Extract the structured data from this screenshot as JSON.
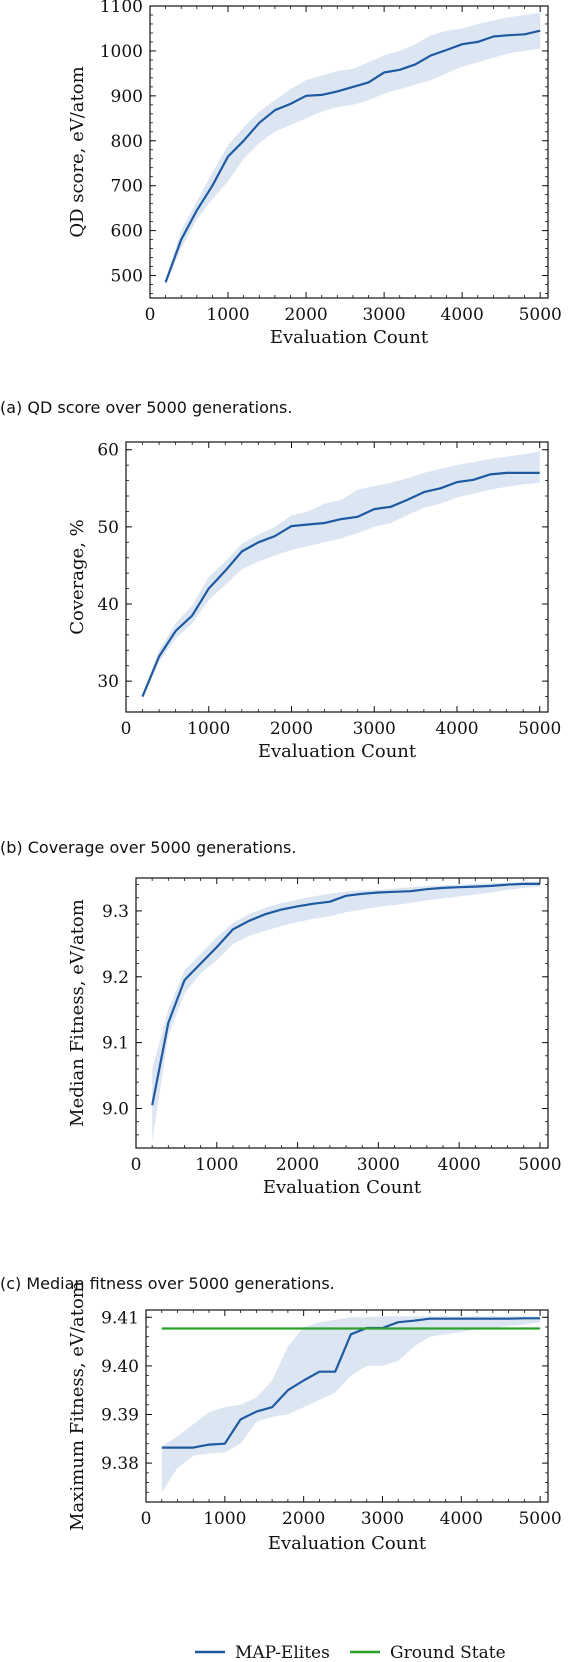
{
  "captions": {
    "a": "(a) QD score over 5000 generations.",
    "b": "(b) Coverage over 5000 generations.",
    "c": "(c) Median fitness over 5000 generations."
  },
  "colors": {
    "map_elites": "#1f5aa0",
    "band": "#dce6f3",
    "ground_state": "#2ca02c"
  },
  "chart_data": [
    {
      "type": "line",
      "xlabel": "Evaluation Count",
      "ylabel": "QD score, eV/atom",
      "xlim": [
        0,
        5100
      ],
      "ylim": [
        450,
        1100
      ],
      "xticks": [
        0,
        1000,
        2000,
        3000,
        4000,
        5000
      ],
      "yticks": [
        500,
        600,
        700,
        800,
        900,
        1000,
        1100
      ],
      "series": [
        {
          "x": [
            200,
            400,
            600,
            800,
            1000,
            1200,
            1400,
            1600,
            1800,
            2000,
            2200,
            2400,
            2600,
            2800,
            3000,
            3200,
            3400,
            3600,
            3800,
            4000,
            4200,
            4400,
            4600,
            4800,
            5000
          ],
          "y": [
            485,
            580,
            645,
            700,
            765,
            800,
            840,
            868,
            882,
            900,
            902,
            910,
            920,
            930,
            952,
            958,
            970,
            990,
            1002,
            1015,
            1020,
            1032,
            1035,
            1037,
            1045
          ],
          "lower": [
            480,
            560,
            625,
            670,
            710,
            760,
            795,
            820,
            835,
            850,
            865,
            875,
            880,
            890,
            905,
            915,
            925,
            935,
            950,
            965,
            975,
            985,
            995,
            1000,
            1005
          ],
          "upper": [
            490,
            600,
            665,
            730,
            790,
            830,
            865,
            890,
            915,
            935,
            945,
            955,
            960,
            975,
            990,
            1000,
            1015,
            1035,
            1045,
            1050,
            1060,
            1068,
            1075,
            1080,
            1085
          ]
        }
      ]
    },
    {
      "type": "line",
      "xlabel": "Evaluation Count",
      "ylabel": "Coverage, %",
      "xlim": [
        0,
        5100
      ],
      "ylim": [
        26,
        61
      ],
      "xticks": [
        0,
        1000,
        2000,
        3000,
        4000,
        5000
      ],
      "yticks": [
        30,
        40,
        50,
        60
      ],
      "series": [
        {
          "x": [
            200,
            400,
            600,
            800,
            1000,
            1200,
            1400,
            1600,
            1800,
            2000,
            2200,
            2400,
            2600,
            2800,
            3000,
            3200,
            3400,
            3600,
            3800,
            4000,
            4200,
            4400,
            4600,
            4800,
            5000
          ],
          "y": [
            28,
            33.2,
            36.5,
            38.5,
            42,
            44.3,
            46.8,
            48,
            48.8,
            50.1,
            50.3,
            50.5,
            51,
            51.3,
            52.3,
            52.6,
            53.5,
            54.5,
            55,
            55.8,
            56.1,
            56.8,
            57,
            57,
            57
          ],
          "lower": [
            27.8,
            32.5,
            35.5,
            37.5,
            40.5,
            42.5,
            44.5,
            45.5,
            46.3,
            47,
            47.5,
            48,
            48.5,
            49.2,
            50,
            50.5,
            51.5,
            52.5,
            53,
            53.8,
            54.3,
            54.8,
            55.2,
            55.5,
            55.7
          ],
          "upper": [
            28.3,
            34,
            37.5,
            39.8,
            43.5,
            45.5,
            47.8,
            49,
            50,
            51.5,
            52,
            53,
            53.5,
            54.8,
            55.3,
            55.7,
            56.3,
            57,
            57.5,
            58,
            58.4,
            58.8,
            59.1,
            59.4,
            59.8
          ]
        }
      ]
    },
    {
      "type": "line",
      "xlabel": "Evaluation Count",
      "ylabel": "Median Fitness, eV/atom",
      "xlim": [
        0,
        5100
      ],
      "ylim": [
        8.94,
        9.35
      ],
      "xticks": [
        0,
        1000,
        2000,
        3000,
        4000,
        5000
      ],
      "yticks": [
        9.0,
        9.1,
        9.2,
        9.3
      ],
      "ytick_labels": [
        "9.0",
        "9.1",
        "9.2",
        "9.3"
      ],
      "series": [
        {
          "x": [
            200,
            400,
            600,
            800,
            1000,
            1200,
            1400,
            1600,
            1800,
            2000,
            2200,
            2400,
            2600,
            2800,
            3000,
            3200,
            3400,
            3600,
            3800,
            4000,
            4200,
            4400,
            4600,
            4800,
            5000
          ],
          "y": [
            9.005,
            9.13,
            9.195,
            9.22,
            9.245,
            9.272,
            9.285,
            9.295,
            9.302,
            9.307,
            9.311,
            9.314,
            9.323,
            9.326,
            9.328,
            9.329,
            9.33,
            9.333,
            9.335,
            9.336,
            9.337,
            9.338,
            9.34,
            9.341,
            9.341
          ],
          "lower": [
            8.95,
            9.11,
            9.175,
            9.205,
            9.225,
            9.25,
            9.262,
            9.27,
            9.277,
            9.283,
            9.288,
            9.292,
            9.298,
            9.302,
            9.306,
            9.309,
            9.312,
            9.316,
            9.319,
            9.322,
            9.325,
            9.328,
            9.332,
            9.335,
            9.337
          ],
          "upper": [
            9.06,
            9.15,
            9.21,
            9.235,
            9.26,
            9.282,
            9.295,
            9.305,
            9.312,
            9.317,
            9.322,
            9.326,
            9.329,
            9.331,
            9.332,
            9.334,
            9.336,
            9.338,
            9.339,
            9.34,
            9.341,
            9.342,
            9.343,
            9.344,
            9.345
          ]
        }
      ]
    },
    {
      "type": "line",
      "xlabel": "Evaluation Count",
      "ylabel": "Maximum Fitness, eV/atom",
      "xlim": [
        0,
        5100
      ],
      "ylim": [
        9.372,
        9.4115
      ],
      "xticks": [
        0,
        1000,
        2000,
        3000,
        4000,
        5000
      ],
      "yticks": [
        9.38,
        9.39,
        9.4,
        9.41
      ],
      "ytick_labels": [
        "9.38",
        "9.39",
        "9.40",
        "9.41"
      ],
      "legend": {
        "placement": "bottom",
        "entries": [
          "MAP-Elites",
          "Ground State"
        ]
      },
      "series": [
        {
          "name": "MAP-Elites",
          "x": [
            200,
            400,
            600,
            800,
            1000,
            1200,
            1400,
            1600,
            1800,
            2000,
            2200,
            2400,
            2600,
            2800,
            3000,
            3200,
            3400,
            3600,
            3800,
            4000,
            4200,
            4400,
            4600,
            4800,
            5000
          ],
          "y": [
            9.3832,
            9.3832,
            9.3832,
            9.3838,
            9.384,
            9.389,
            9.3906,
            9.3915,
            9.395,
            9.397,
            9.3988,
            9.3988,
            9.4065,
            9.4078,
            9.4078,
            9.409,
            9.4093,
            9.4097,
            9.4097,
            9.4097,
            9.4097,
            9.4097,
            9.4097,
            9.4098,
            9.4098
          ],
          "lower": [
            9.374,
            9.379,
            9.3815,
            9.382,
            9.3822,
            9.384,
            9.3885,
            9.3895,
            9.39,
            9.3915,
            9.393,
            9.3945,
            9.398,
            9.4,
            9.4,
            9.401,
            9.404,
            9.406,
            9.4065,
            9.407,
            9.4075,
            9.4078,
            9.4082,
            9.4085,
            9.409
          ],
          "upper": [
            9.3835,
            9.3855,
            9.388,
            9.3905,
            9.3915,
            9.392,
            9.3935,
            9.397,
            9.404,
            9.408,
            9.409,
            9.4095,
            9.41,
            9.41,
            9.4102,
            9.4102,
            9.4102,
            9.4102,
            9.4102,
            9.4102,
            9.4102,
            9.4102,
            9.4102,
            9.4102,
            9.4102
          ]
        },
        {
          "name": "Ground State",
          "x": [
            200,
            5000
          ],
          "y": [
            9.4077,
            9.4077
          ]
        }
      ]
    }
  ]
}
